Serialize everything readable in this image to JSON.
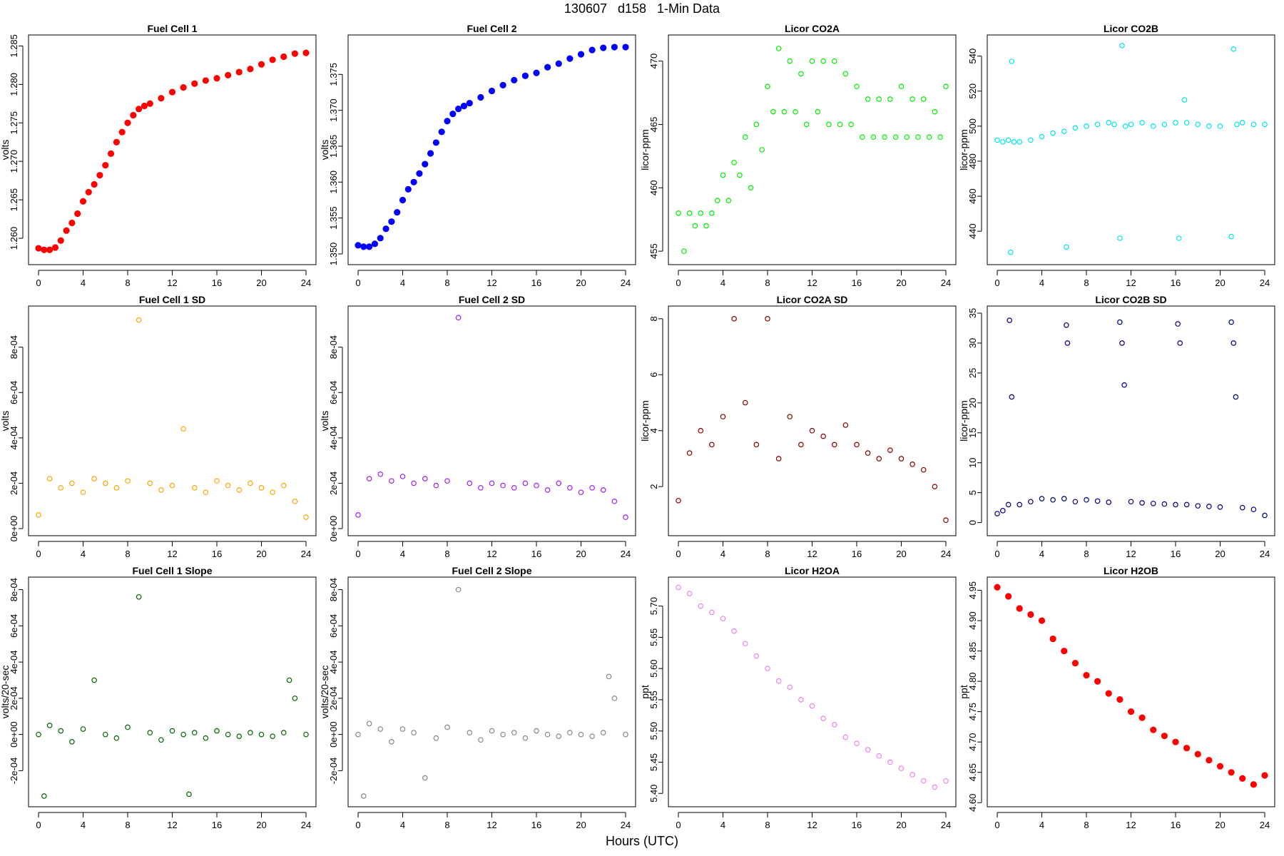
{
  "page": {
    "title": "130607   d158   1-Min Data",
    "xlabel": "Hours (UTC)"
  },
  "chart_data": [
    {
      "type": "scatter",
      "title": "Fuel Cell 1",
      "ylabel": "volts",
      "color": "#ff0000",
      "marker": "filled",
      "xlim": [
        0,
        24
      ],
      "ylim": [
        1.2575,
        1.2855
      ],
      "xticks": [
        "0",
        "4",
        "8",
        "12",
        "16",
        "20",
        "24"
      ],
      "yticks": [
        1.26,
        1.265,
        1.27,
        1.275,
        1.28,
        1.285
      ],
      "ytick_labels": [
        "1.260",
        "1.265",
        "1.270",
        "1.275",
        "1.280",
        "1.285"
      ],
      "x": [
        0,
        0.5,
        1,
        1.5,
        2,
        2.5,
        3,
        3.5,
        4,
        4.5,
        5,
        5.5,
        6,
        6.5,
        7,
        7.5,
        8,
        8.5,
        9,
        9.5,
        10,
        11,
        12,
        13,
        14,
        15,
        16,
        17,
        18,
        19,
        20,
        21,
        22,
        23,
        24
      ],
      "y": [
        1.2587,
        1.2585,
        1.2585,
        1.2588,
        1.2597,
        1.261,
        1.262,
        1.2632,
        1.2648,
        1.266,
        1.267,
        1.2682,
        1.2695,
        1.271,
        1.2725,
        1.2738,
        1.275,
        1.276,
        1.2768,
        1.2772,
        1.2775,
        1.2782,
        1.279,
        1.2796,
        1.2801,
        1.2805,
        1.2808,
        1.2812,
        1.2816,
        1.282,
        1.2826,
        1.2832,
        1.2836,
        1.284,
        1.2841
      ]
    },
    {
      "type": "scatter",
      "title": "Fuel Cell 2",
      "ylabel": "volts",
      "color": "#0000ff",
      "marker": "filled",
      "xlim": [
        0,
        24
      ],
      "ylim": [
        1.3495,
        1.3795
      ],
      "xticks": [
        "0",
        "4",
        "8",
        "12",
        "16",
        "20",
        "24"
      ],
      "yticks": [
        1.35,
        1.355,
        1.36,
        1.365,
        1.37,
        1.375
      ],
      "ytick_labels": [
        "1.350",
        "1.355",
        "1.360",
        "1.365",
        "1.370",
        "1.375"
      ],
      "x": [
        0,
        0.5,
        1,
        1.5,
        2,
        2.5,
        3,
        3.5,
        4,
        4.5,
        5,
        5.5,
        6,
        6.5,
        7,
        7.5,
        8,
        8.5,
        9,
        9.5,
        10,
        11,
        12,
        13,
        14,
        15,
        16,
        17,
        18,
        19,
        20,
        21,
        22,
        23,
        24
      ],
      "y": [
        1.3512,
        1.351,
        1.351,
        1.3514,
        1.3522,
        1.3535,
        1.3545,
        1.3558,
        1.3575,
        1.359,
        1.36,
        1.3612,
        1.3625,
        1.364,
        1.3655,
        1.367,
        1.3685,
        1.3695,
        1.3702,
        1.3706,
        1.371,
        1.3718,
        1.3727,
        1.3735,
        1.3742,
        1.3748,
        1.3752,
        1.376,
        1.3765,
        1.3772,
        1.3778,
        1.3784,
        1.3787,
        1.3788,
        1.3788
      ]
    },
    {
      "type": "scatter",
      "title": "Licor CO2A",
      "ylabel": "licor-ppm",
      "color": "#00ee00",
      "marker": "open",
      "xlim": [
        0,
        24
      ],
      "ylim": [
        454.5,
        471.5
      ],
      "xticks": [
        "0",
        "4",
        "8",
        "12",
        "16",
        "20",
        "24"
      ],
      "yticks": [
        455,
        460,
        465,
        470
      ],
      "ytick_labels": [
        "455",
        "460",
        "465",
        "470"
      ],
      "x": [
        0,
        0.5,
        1,
        1.5,
        2,
        2.5,
        3,
        3.5,
        4,
        4.5,
        5,
        5.5,
        6,
        6.5,
        7,
        7.5,
        8,
        8.5,
        9,
        9.5,
        10,
        10.5,
        11,
        11.5,
        12,
        12.5,
        13,
        13.5,
        14,
        14.5,
        15,
        15.5,
        16,
        16.5,
        17,
        17.5,
        18,
        18.5,
        19,
        19.5,
        20,
        20.5,
        21,
        21.5,
        22,
        22.5,
        23,
        23.5,
        24
      ],
      "y": [
        458,
        455,
        458,
        457,
        458,
        457,
        458,
        459,
        461,
        459,
        462,
        461,
        464,
        460,
        465,
        463,
        468,
        466,
        471,
        466,
        470,
        466,
        469,
        465,
        470,
        466,
        470,
        465,
        470,
        465,
        469,
        465,
        468,
        464,
        467,
        464,
        467,
        464,
        467,
        464,
        468,
        464,
        467,
        464,
        467,
        464,
        466,
        464,
        468
      ]
    },
    {
      "type": "scatter",
      "title": "Licor CO2B",
      "ylabel": "licor-ppm",
      "color": "#00e5ee",
      "marker": "open",
      "xlim": [
        0,
        24
      ],
      "ylim": [
        425,
        548
      ],
      "xticks": [
        "0",
        "4",
        "8",
        "12",
        "16",
        "20",
        "24"
      ],
      "yticks": [
        440,
        460,
        480,
        500,
        520,
        540
      ],
      "ytick_labels": [
        "440",
        "460",
        "480",
        "500",
        "520",
        "540"
      ],
      "x": [
        0,
        0.5,
        1,
        1.2,
        1.3,
        1.5,
        2,
        3,
        4,
        5,
        6,
        6.2,
        7,
        8,
        9,
        10,
        10.5,
        11,
        11.2,
        11.5,
        12,
        13,
        14,
        15,
        16,
        16.3,
        16.8,
        17,
        18,
        19,
        20,
        21,
        21.2,
        21.5,
        22,
        23,
        24
      ],
      "y": [
        492,
        491,
        492,
        428,
        537,
        491,
        491,
        492,
        494,
        496,
        497,
        431,
        499,
        500,
        501,
        502,
        501,
        436,
        546,
        500,
        501,
        502,
        500,
        501,
        502,
        436,
        515,
        502,
        501,
        500,
        500,
        437,
        544,
        501,
        502,
        501,
        501
      ]
    },
    {
      "type": "scatter",
      "title": "Fuel Cell 1 SD",
      "ylabel": "volts",
      "color": "#ffa500",
      "marker": "open",
      "xlim": [
        0,
        24
      ],
      "ylim": [
        0,
        0.00095
      ],
      "xticks": [
        "0",
        "4",
        "8",
        "12",
        "16",
        "20",
        "24"
      ],
      "yticks": [
        0,
        0.0002,
        0.0004,
        0.0006,
        0.0008
      ],
      "ytick_labels": [
        "0e+00",
        "2e-04",
        "4e-04",
        "6e-04",
        "8e-04"
      ],
      "x": [
        0,
        1,
        2,
        3,
        4,
        5,
        6,
        7,
        8,
        9,
        10,
        11,
        12,
        13,
        14,
        15,
        16,
        17,
        18,
        19,
        20,
        21,
        22,
        23,
        24
      ],
      "y": [
        6e-05,
        0.00022,
        0.00018,
        0.0002,
        0.00016,
        0.00022,
        0.0002,
        0.00018,
        0.00021,
        0.00092,
        0.0002,
        0.00017,
        0.00019,
        0.00044,
        0.00018,
        0.00016,
        0.00021,
        0.00019,
        0.00017,
        0.0002,
        0.00018,
        0.00016,
        0.00019,
        0.00012,
        5e-05
      ]
    },
    {
      "type": "scatter",
      "title": "Fuel Cell 2 SD",
      "ylabel": "volts",
      "color": "#a020f0",
      "marker": "open",
      "xlim": [
        0,
        24
      ],
      "ylim": [
        0,
        0.00095
      ],
      "xticks": [
        "0",
        "4",
        "8",
        "12",
        "16",
        "20",
        "24"
      ],
      "yticks": [
        0,
        0.0002,
        0.0004,
        0.0006,
        0.0008
      ],
      "ytick_labels": [
        "0e+00",
        "2e-04",
        "4e-04",
        "6e-04",
        "8e-04"
      ],
      "x": [
        0,
        1,
        2,
        3,
        4,
        5,
        6,
        7,
        8,
        9,
        10,
        11,
        12,
        13,
        14,
        15,
        16,
        17,
        18,
        19,
        20,
        21,
        22,
        23,
        24
      ],
      "y": [
        6e-05,
        0.00022,
        0.00024,
        0.00021,
        0.00023,
        0.0002,
        0.00022,
        0.00019,
        0.00021,
        0.00093,
        0.0002,
        0.00018,
        0.0002,
        0.00019,
        0.00018,
        0.0002,
        0.00019,
        0.00017,
        0.0002,
        0.00018,
        0.00016,
        0.00018,
        0.00017,
        0.00012,
        5e-05
      ]
    },
    {
      "type": "scatter",
      "title": "Licor CO2A SD",
      "ylabel": "licor-ppm",
      "color": "#8b0000",
      "marker": "open",
      "xlim": [
        0,
        24
      ],
      "ylim": [
        0.5,
        8.2
      ],
      "xticks": [
        "0",
        "4",
        "8",
        "12",
        "16",
        "20",
        "24"
      ],
      "yticks": [
        2,
        4,
        6,
        8
      ],
      "ytick_labels": [
        "2",
        "4",
        "6",
        "8"
      ],
      "x": [
        0,
        1,
        2,
        3,
        4,
        5,
        6,
        7,
        8,
        9,
        10,
        11,
        12,
        13,
        14,
        15,
        16,
        17,
        18,
        19,
        20,
        21,
        22,
        23,
        24
      ],
      "y": [
        1.5,
        3.2,
        4,
        3.5,
        4.5,
        8,
        5,
        3.5,
        8,
        3,
        4.5,
        3.5,
        4,
        3.8,
        3.5,
        4.2,
        3.5,
        3.2,
        3,
        3.3,
        3,
        2.8,
        2.6,
        2,
        0.8
      ]
    },
    {
      "type": "scatter",
      "title": "Licor CO2B SD",
      "ylabel": "licor-ppm",
      "color": "#000080",
      "marker": "open",
      "xlim": [
        0,
        24
      ],
      "ylim": [
        -1,
        35
      ],
      "xticks": [
        "0",
        "4",
        "8",
        "12",
        "16",
        "20",
        "24"
      ],
      "yticks": [
        0,
        5,
        10,
        15,
        20,
        25,
        30,
        35
      ],
      "ytick_labels": [
        "0",
        "5",
        "10",
        "15",
        "20",
        "25",
        "30",
        "35"
      ],
      "x": [
        0,
        0.5,
        1,
        1.1,
        1.3,
        2,
        3,
        4,
        5,
        6,
        6.2,
        6.3,
        7,
        8,
        9,
        10,
        11,
        11.2,
        11.4,
        12,
        13,
        14,
        15,
        16,
        16.2,
        16.4,
        17,
        18,
        19,
        20,
        21,
        21.2,
        21.4,
        22,
        23,
        24
      ],
      "y": [
        1.5,
        2,
        3,
        33.8,
        21,
        3,
        3.5,
        4,
        3.8,
        4,
        33,
        30,
        3.5,
        3.8,
        3.6,
        3.4,
        33.5,
        30,
        23,
        3.5,
        3.3,
        3.2,
        3.1,
        3,
        33.2,
        30,
        3,
        2.8,
        2.7,
        2.6,
        33.5,
        30,
        21,
        2.5,
        2.2,
        1.2
      ]
    },
    {
      "type": "scatter",
      "title": "Fuel Cell 1 Slope",
      "ylabel": "volts/20-sec",
      "color": "#006400",
      "marker": "open",
      "xlim": [
        0,
        24
      ],
      "ylim": [
        -0.00036,
        0.00083
      ],
      "xticks": [
        "0",
        "4",
        "8",
        "12",
        "16",
        "20",
        "24"
      ],
      "yticks": [
        -0.0002,
        0,
        0.0002,
        0.0004,
        0.0006,
        0.0008
      ],
      "ytick_labels": [
        "-2e-04",
        "0e+00",
        "2e-04",
        "4e-04",
        "6e-04",
        "8e-04"
      ],
      "x": [
        0,
        0.5,
        1,
        2,
        3,
        4,
        5,
        6,
        7,
        8,
        9,
        10,
        11,
        12,
        13,
        13.5,
        14,
        15,
        16,
        17,
        18,
        19,
        20,
        21,
        22,
        22.5,
        23,
        24
      ],
      "y": [
        0,
        -0.00034,
        5e-05,
        2e-05,
        -4e-05,
        3e-05,
        0.0003,
        0,
        -2e-05,
        4e-05,
        0.00076,
        1e-05,
        -3e-05,
        2e-05,
        0,
        -0.00033,
        1e-05,
        -2e-05,
        2e-05,
        0,
        -1e-05,
        1e-05,
        0,
        -1e-05,
        1e-05,
        0.0003,
        0.0002,
        0
      ]
    },
    {
      "type": "scatter",
      "title": "Fuel Cell 2 Slope",
      "ylabel": "volts/20-sec",
      "color": "#888888",
      "marker": "open",
      "xlim": [
        0,
        24
      ],
      "ylim": [
        -0.00036,
        0.00083
      ],
      "xticks": [
        "0",
        "4",
        "8",
        "12",
        "16",
        "20",
        "24"
      ],
      "yticks": [
        -0.0002,
        0,
        0.0002,
        0.0004,
        0.0006,
        0.0008
      ],
      "ytick_labels": [
        "-2e-04",
        "0e+00",
        "2e-04",
        "4e-04",
        "6e-04",
        "8e-04"
      ],
      "x": [
        0,
        0.5,
        1,
        2,
        3,
        4,
        5,
        6,
        7,
        8,
        9,
        10,
        11,
        12,
        13,
        14,
        15,
        16,
        17,
        18,
        19,
        20,
        21,
        22,
        22.5,
        23,
        24
      ],
      "y": [
        0,
        -0.00034,
        6e-05,
        3e-05,
        -4e-05,
        3e-05,
        1e-05,
        -0.00024,
        -2e-05,
        4e-05,
        0.0008,
        1e-05,
        -3e-05,
        2e-05,
        0,
        1e-05,
        -2e-05,
        2e-05,
        0,
        -1e-05,
        1e-05,
        0,
        -1e-05,
        1e-05,
        0.00032,
        0.0002,
        0
      ]
    },
    {
      "type": "scatter",
      "title": "Licor H2OA",
      "ylabel": "ppt",
      "color": "#ee82ee",
      "marker": "open",
      "xlim": [
        0,
        24
      ],
      "ylim": [
        5.39,
        5.735
      ],
      "xticks": [
        "0",
        "4",
        "8",
        "12",
        "16",
        "20",
        "24"
      ],
      "yticks": [
        5.4,
        5.45,
        5.5,
        5.55,
        5.6,
        5.65,
        5.7
      ],
      "ytick_labels": [
        "5.40",
        "5.45",
        "5.50",
        "5.55",
        "5.60",
        "5.65",
        "5.70"
      ],
      "x": [
        0,
        1,
        2,
        3,
        4,
        5,
        6,
        7,
        8,
        9,
        10,
        11,
        12,
        13,
        14,
        15,
        16,
        17,
        18,
        19,
        20,
        21,
        22,
        23,
        24
      ],
      "y": [
        5.73,
        5.72,
        5.7,
        5.69,
        5.68,
        5.66,
        5.64,
        5.62,
        5.6,
        5.58,
        5.57,
        5.55,
        5.54,
        5.52,
        5.51,
        5.49,
        5.48,
        5.47,
        5.46,
        5.45,
        5.44,
        5.43,
        5.42,
        5.41,
        5.42
      ]
    },
    {
      "type": "scatter",
      "title": "Licor H2OB",
      "ylabel": "ppt",
      "color": "#ff0000",
      "marker": "filled",
      "xlim": [
        0,
        24
      ],
      "ylim": [
        4.605,
        4.96
      ],
      "xticks": [
        "0",
        "4",
        "8",
        "12",
        "16",
        "20",
        "24"
      ],
      "yticks": [
        4.6,
        4.65,
        4.7,
        4.75,
        4.8,
        4.85,
        4.9,
        4.95
      ],
      "ytick_labels": [
        "4.60",
        "4.65",
        "4.70",
        "4.75",
        "4.80",
        "4.85",
        "4.90",
        "4.95"
      ],
      "x": [
        0,
        1,
        2,
        3,
        4,
        5,
        6,
        7,
        8,
        9,
        10,
        11,
        12,
        13,
        14,
        15,
        16,
        17,
        18,
        19,
        20,
        21,
        22,
        23,
        24
      ],
      "y": [
        4.955,
        4.94,
        4.92,
        4.91,
        4.9,
        4.87,
        4.85,
        4.83,
        4.81,
        4.8,
        4.78,
        4.77,
        4.75,
        4.74,
        4.72,
        4.71,
        4.7,
        4.69,
        4.68,
        4.67,
        4.66,
        4.65,
        4.64,
        4.63,
        4.645
      ]
    }
  ]
}
